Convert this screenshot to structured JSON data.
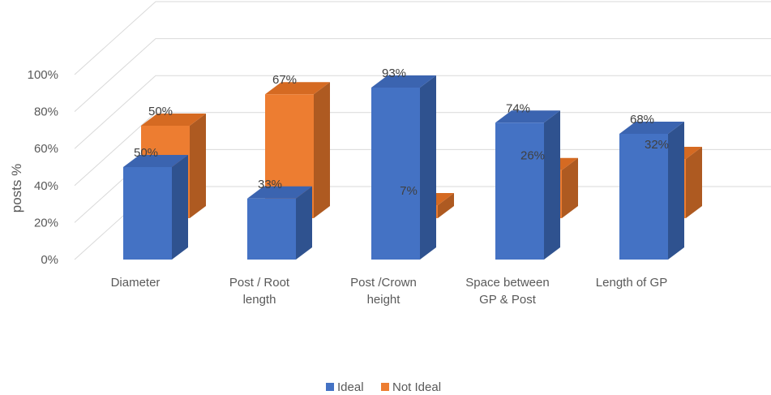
{
  "chart_data": {
    "type": "bar",
    "view": "3d-clustered-column",
    "title": "",
    "xlabel": "",
    "ylabel": "posts %",
    "ylim": [
      0,
      100
    ],
    "yticks": [
      0,
      20,
      40,
      60,
      80,
      100
    ],
    "tick_suffix": "%",
    "grid": true,
    "legend_position": "bottom",
    "categories": [
      [
        "Diameter"
      ],
      [
        "Post / Root",
        "length"
      ],
      [
        "Post /Crown",
        "height"
      ],
      [
        "Space between",
        "GP & Post"
      ],
      [
        "Length of GP"
      ]
    ],
    "series": [
      {
        "name": "Ideal",
        "values": [
          50,
          33,
          93,
          74,
          68
        ],
        "labels": [
          "50%",
          "33%",
          "93%",
          "74%",
          "68%"
        ],
        "color": "#4472C4",
        "top_color": "#3B64B0",
        "side_color": "#2F528F"
      },
      {
        "name": "Not Ideal",
        "values": [
          50,
          67,
          7,
          26,
          32
        ],
        "labels": [
          "50%",
          "67%",
          "7%",
          "26%",
          "32%"
        ],
        "color": "#ED7D31",
        "top_color": "#D56A22",
        "side_color": "#AE5A21"
      }
    ]
  }
}
